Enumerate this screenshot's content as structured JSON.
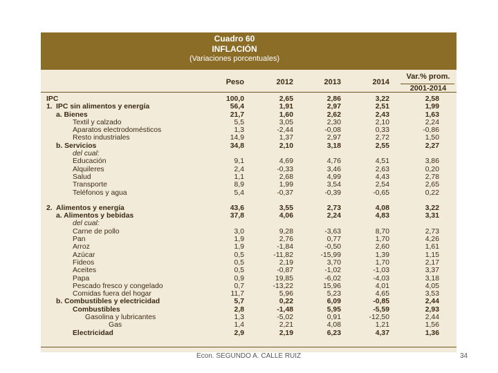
{
  "title": {
    "line1": "Cuadro 60",
    "line2": "INFLACIÓN",
    "line3": "(Variaciones porcentuales)"
  },
  "columns": {
    "peso": "Peso",
    "y2012": "2012",
    "y2013": "2013",
    "y2014": "2014",
    "prom_top": "Var.% prom.",
    "prom_bottom": "2001-2014"
  },
  "rows": [
    {
      "num": "",
      "label": "IPC",
      "indent": 0,
      "bold": true,
      "italic": false,
      "values": [
        "100,0",
        "2,65",
        "2,86",
        "3,22",
        "2,58"
      ]
    },
    {
      "num": "1.",
      "label": "IPC sin alimentos y energía",
      "indent": 1,
      "bold": true,
      "italic": false,
      "values": [
        "56,4",
        "1,91",
        "2,97",
        "2,51",
        "1,99"
      ]
    },
    {
      "num": "",
      "label": "a.  Bienes",
      "indent": 2,
      "bold": true,
      "italic": false,
      "values": [
        "21,7",
        "1,60",
        "2,62",
        "2,43",
        "1,63"
      ]
    },
    {
      "num": "",
      "label": "Textil y calzado",
      "indent": 3,
      "bold": false,
      "italic": false,
      "values": [
        "5,5",
        "3,05",
        "2,30",
        "2,10",
        "2,24"
      ]
    },
    {
      "num": "",
      "label": "Aparatos electrodomésticos",
      "indent": 3,
      "bold": false,
      "italic": false,
      "values": [
        "1,3",
        "-2,44",
        "-0,08",
        "0,33",
        "-0,86"
      ]
    },
    {
      "num": "",
      "label": "Resto industriales",
      "indent": 3,
      "bold": false,
      "italic": false,
      "values": [
        "14,9",
        "1,37",
        "2,97",
        "2,72",
        "1,50"
      ]
    },
    {
      "num": "",
      "label": "b.  Servicios",
      "indent": 2,
      "bold": true,
      "italic": false,
      "values": [
        "34,8",
        "2,10",
        "3,18",
        "2,55",
        "2,27"
      ]
    },
    {
      "num": "",
      "label": "del cual:",
      "indent": 3,
      "bold": false,
      "italic": true,
      "values": [
        "",
        "",
        "",
        "",
        ""
      ]
    },
    {
      "num": "",
      "label": "Educación",
      "indent": 3,
      "bold": false,
      "italic": false,
      "values": [
        "9,1",
        "4,69",
        "4,76",
        "4,51",
        "3,86"
      ]
    },
    {
      "num": "",
      "label": "Alquileres",
      "indent": 3,
      "bold": false,
      "italic": false,
      "values": [
        "2,4",
        "-0,33",
        "3,46",
        "2,63",
        "0,20"
      ]
    },
    {
      "num": "",
      "label": "Salud",
      "indent": 3,
      "bold": false,
      "italic": false,
      "values": [
        "1,1",
        "2,68",
        "4,99",
        "4,43",
        "2,78"
      ]
    },
    {
      "num": "",
      "label": "Transporte",
      "indent": 3,
      "bold": false,
      "italic": false,
      "values": [
        "8,9",
        "1,99",
        "3,54",
        "2,54",
        "2,65"
      ]
    },
    {
      "num": "",
      "label": "Teléfonos y agua",
      "indent": 3,
      "bold": false,
      "italic": false,
      "values": [
        "5,4",
        "-0,37",
        "-0,39",
        "-0,65",
        "0,22"
      ]
    },
    {
      "num": "",
      "label": "",
      "indent": 0,
      "bold": false,
      "italic": false,
      "blank": true,
      "values": [
        "",
        "",
        "",
        "",
        ""
      ]
    },
    {
      "num": "2.",
      "label": "Alimentos y energía",
      "indent": 1,
      "bold": true,
      "italic": false,
      "values": [
        "43,6",
        "3,55",
        "2,73",
        "4,08",
        "3,22"
      ]
    },
    {
      "num": "",
      "label": "a.  Alimentos y bebidas",
      "indent": 2,
      "bold": true,
      "italic": false,
      "values": [
        "37,8",
        "4,06",
        "2,24",
        "4,83",
        "3,31"
      ]
    },
    {
      "num": "",
      "label": "del cual:",
      "indent": 3,
      "bold": false,
      "italic": true,
      "values": [
        "",
        "",
        "",
        "",
        ""
      ]
    },
    {
      "num": "",
      "label": "Carne de pollo",
      "indent": 3,
      "bold": false,
      "italic": false,
      "values": [
        "3,0",
        "9,28",
        "-3,63",
        "8,70",
        "2,73"
      ]
    },
    {
      "num": "",
      "label": "Pan",
      "indent": 3,
      "bold": false,
      "italic": false,
      "values": [
        "1,9",
        "2,76",
        "0,77",
        "1,70",
        "4,26"
      ]
    },
    {
      "num": "",
      "label": "Arroz",
      "indent": 3,
      "bold": false,
      "italic": false,
      "values": [
        "1,9",
        "-1,84",
        "-0,50",
        "2,60",
        "1,61"
      ]
    },
    {
      "num": "",
      "label": "Azúcar",
      "indent": 3,
      "bold": false,
      "italic": false,
      "values": [
        "0,5",
        "-11,82",
        "-15,99",
        "1,39",
        "1,15"
      ]
    },
    {
      "num": "",
      "label": "Fideos",
      "indent": 3,
      "bold": false,
      "italic": false,
      "values": [
        "0,5",
        "2,19",
        "3,70",
        "1,70",
        "2,17"
      ]
    },
    {
      "num": "",
      "label": "Aceites",
      "indent": 3,
      "bold": false,
      "italic": false,
      "values": [
        "0,5",
        "-0,87",
        "-1,02",
        "-1,03",
        "3,37"
      ]
    },
    {
      "num": "",
      "label": "Papa",
      "indent": 3,
      "bold": false,
      "italic": false,
      "values": [
        "0,9",
        "19,85",
        "-6,02",
        "-4,03",
        "3,18"
      ]
    },
    {
      "num": "",
      "label": "Pescado fresco y congelado",
      "indent": 3,
      "bold": false,
      "italic": false,
      "values": [
        "0,7",
        "-13,22",
        "15,96",
        "4,01",
        "4,05"
      ]
    },
    {
      "num": "",
      "label": "Comidas fuera del hogar",
      "indent": 3,
      "bold": false,
      "italic": false,
      "values": [
        "11,7",
        "5,96",
        "5,23",
        "4,65",
        "3,53"
      ]
    },
    {
      "num": "",
      "label": "b.  Combustibles y electricidad",
      "indent": 2,
      "bold": true,
      "italic": false,
      "values": [
        "5,7",
        "0,22",
        "6,09",
        "-0,85",
        "2,44"
      ]
    },
    {
      "num": "",
      "label": "Combustibles",
      "indent": 3,
      "bold": true,
      "italic": false,
      "values": [
        "2,8",
        "-1,48",
        "5,95",
        "-5,59",
        "2,93"
      ]
    },
    {
      "num": "",
      "label": "Gasolina y lubricantes",
      "indent": 4,
      "bold": false,
      "italic": false,
      "values": [
        "1,3",
        "-5,02",
        "0,91",
        "-12,50",
        "2,44"
      ]
    },
    {
      "num": "",
      "label": "Gas",
      "indent": 5,
      "bold": false,
      "italic": false,
      "values": [
        "1,4",
        "2,21",
        "4,08",
        "1,21",
        "1,56"
      ]
    },
    {
      "num": "",
      "label": "Electricidad",
      "indent": 3,
      "bold": true,
      "italic": false,
      "values": [
        "2,9",
        "2,19",
        "6,23",
        "4,37",
        "1,36"
      ]
    }
  ],
  "footer": {
    "author": "Econ. SEGUNDO A. CALLE RUIZ",
    "page": "34"
  }
}
